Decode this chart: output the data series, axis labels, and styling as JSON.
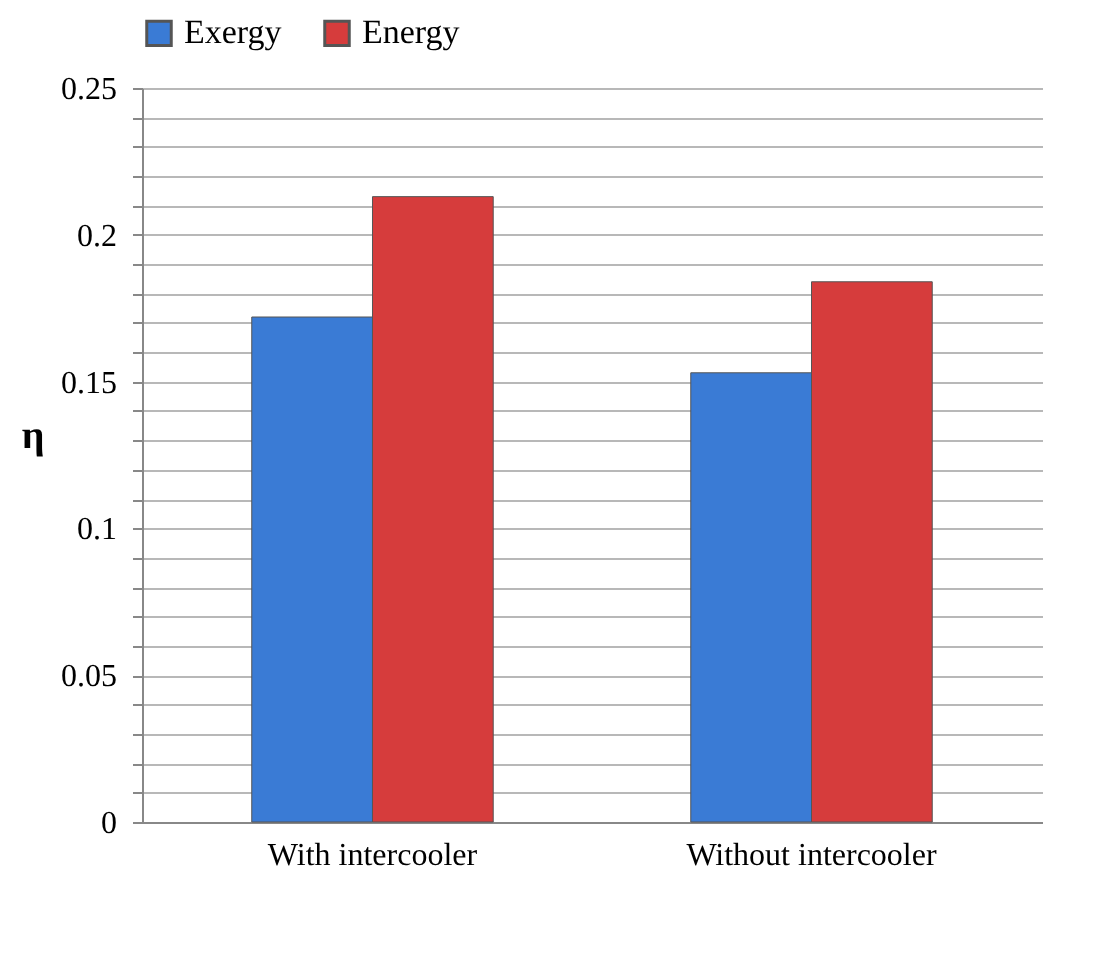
{
  "chart_data": {
    "type": "bar",
    "ylabel": "η",
    "categories": [
      "With intercooler",
      "Without intercooler"
    ],
    "series": [
      {
        "name": "Exergy",
        "color": "#3a7bd5",
        "values": [
          0.172,
          0.153
        ]
      },
      {
        "name": "Energy",
        "color": "#d63c3c",
        "values": [
          0.213,
          0.184
        ]
      }
    ],
    "ylim": [
      0,
      0.25
    ],
    "yticks": [
      0,
      {
        "value": 0.01,
        "label": null
      },
      {
        "value": 0.02,
        "label": null
      },
      {
        "value": 0.03,
        "label": null
      },
      {
        "value": 0.04,
        "label": null
      },
      0.05,
      {
        "value": 0.06,
        "label": null
      },
      {
        "value": 0.07,
        "label": null
      },
      {
        "value": 0.08,
        "label": null
      },
      {
        "value": 0.09,
        "label": null
      },
      0.1,
      {
        "value": 0.11,
        "label": null
      },
      {
        "value": 0.12,
        "label": null
      },
      {
        "value": 0.13,
        "label": null
      },
      {
        "value": 0.14,
        "label": null
      },
      0.15,
      {
        "value": 0.16,
        "label": null
      },
      {
        "value": 0.17,
        "label": null
      },
      {
        "value": 0.18,
        "label": null
      },
      {
        "value": 0.19,
        "label": null
      },
      0.2,
      {
        "value": 0.21,
        "label": null
      },
      {
        "value": 0.22,
        "label": null
      },
      {
        "value": 0.23,
        "label": null
      },
      {
        "value": 0.24,
        "label": null
      },
      0.25
    ],
    "grid": "y",
    "legend": "top"
  }
}
